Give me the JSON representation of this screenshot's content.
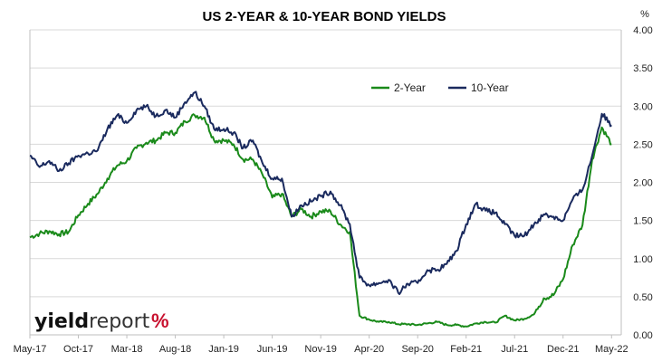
{
  "chart_data": {
    "type": "line",
    "title": "US 2-YEAR & 10-YEAR BOND YIELDS",
    "y_unit": "%",
    "ylim": [
      0,
      4
    ],
    "y_ticks": [
      "0.00",
      "0.50",
      "1.00",
      "1.50",
      "2.00",
      "2.50",
      "3.00",
      "3.50",
      "4.00"
    ],
    "x_tick_labels": [
      "May-17",
      "Oct-17",
      "Mar-18",
      "Aug-18",
      "Jan-19",
      "Jun-19",
      "Nov-19",
      "Apr-20",
      "Sep-20",
      "Feb-21",
      "Jul-21",
      "Dec-21",
      "May-22"
    ],
    "xlim": [
      "2017-05",
      "2022-06"
    ],
    "grid": "horizontal",
    "legend_position": "top-right",
    "series": [
      {
        "name": "2-Year",
        "color": "#1a8a1a",
        "x": [
          "2017-05",
          "2017-06",
          "2017-07",
          "2017-08",
          "2017-09",
          "2017-10",
          "2017-11",
          "2017-12",
          "2018-01",
          "2018-02",
          "2018-03",
          "2018-04",
          "2018-05",
          "2018-06",
          "2018-07",
          "2018-08",
          "2018-09",
          "2018-10",
          "2018-11",
          "2018-12",
          "2019-01",
          "2019-02",
          "2019-03",
          "2019-04",
          "2019-05",
          "2019-06",
          "2019-07",
          "2019-08",
          "2019-09",
          "2019-10",
          "2019-11",
          "2019-12",
          "2020-01",
          "2020-02",
          "2020-03",
          "2020-04",
          "2020-05",
          "2020-06",
          "2020-07",
          "2020-08",
          "2020-09",
          "2020-10",
          "2020-11",
          "2020-12",
          "2021-01",
          "2021-02",
          "2021-03",
          "2021-04",
          "2021-05",
          "2021-06",
          "2021-07",
          "2021-08",
          "2021-09",
          "2021-10",
          "2021-11",
          "2021-12",
          "2022-01",
          "2022-02",
          "2022-03",
          "2022-04",
          "2022-05"
        ],
        "values": [
          1.28,
          1.33,
          1.36,
          1.32,
          1.35,
          1.57,
          1.72,
          1.85,
          2.05,
          2.22,
          2.28,
          2.45,
          2.52,
          2.55,
          2.65,
          2.65,
          2.8,
          2.88,
          2.85,
          2.55,
          2.55,
          2.5,
          2.3,
          2.3,
          2.1,
          1.8,
          1.85,
          1.55,
          1.65,
          1.55,
          1.62,
          1.62,
          1.45,
          1.35,
          0.25,
          0.2,
          0.17,
          0.17,
          0.14,
          0.14,
          0.13,
          0.15,
          0.17,
          0.13,
          0.13,
          0.11,
          0.15,
          0.17,
          0.16,
          0.25,
          0.19,
          0.21,
          0.27,
          0.48,
          0.52,
          0.73,
          1.18,
          1.44,
          2.3,
          2.72,
          2.5
        ]
      },
      {
        "name": "10-Year",
        "color": "#1a2a5e",
        "x": [
          "2017-05",
          "2017-06",
          "2017-07",
          "2017-08",
          "2017-09",
          "2017-10",
          "2017-11",
          "2017-12",
          "2018-01",
          "2018-02",
          "2018-03",
          "2018-04",
          "2018-05",
          "2018-06",
          "2018-07",
          "2018-08",
          "2018-09",
          "2018-10",
          "2018-11",
          "2018-12",
          "2019-01",
          "2019-02",
          "2019-03",
          "2019-04",
          "2019-05",
          "2019-06",
          "2019-07",
          "2019-08",
          "2019-09",
          "2019-10",
          "2019-11",
          "2019-12",
          "2020-01",
          "2020-02",
          "2020-03",
          "2020-04",
          "2020-05",
          "2020-06",
          "2020-07",
          "2020-08",
          "2020-09",
          "2020-10",
          "2020-11",
          "2020-12",
          "2021-01",
          "2021-02",
          "2021-03",
          "2021-04",
          "2021-05",
          "2021-06",
          "2021-07",
          "2021-08",
          "2021-09",
          "2021-10",
          "2021-11",
          "2021-12",
          "2022-01",
          "2022-02",
          "2022-03",
          "2022-04",
          "2022-05"
        ],
        "values": [
          2.35,
          2.2,
          2.28,
          2.15,
          2.25,
          2.35,
          2.38,
          2.42,
          2.7,
          2.88,
          2.78,
          2.95,
          3.0,
          2.87,
          2.95,
          2.85,
          3.05,
          3.18,
          3.0,
          2.7,
          2.7,
          2.65,
          2.45,
          2.55,
          2.25,
          2.05,
          2.05,
          1.55,
          1.7,
          1.75,
          1.82,
          1.88,
          1.7,
          1.45,
          0.75,
          0.65,
          0.68,
          0.72,
          0.55,
          0.67,
          0.68,
          0.85,
          0.85,
          0.93,
          1.1,
          1.45,
          1.72,
          1.63,
          1.6,
          1.45,
          1.3,
          1.3,
          1.45,
          1.58,
          1.55,
          1.5,
          1.78,
          1.9,
          2.35,
          2.9,
          2.75
        ]
      }
    ]
  },
  "logo": {
    "text_bold": "yield",
    "text_light": "report",
    "symbol": "%"
  }
}
